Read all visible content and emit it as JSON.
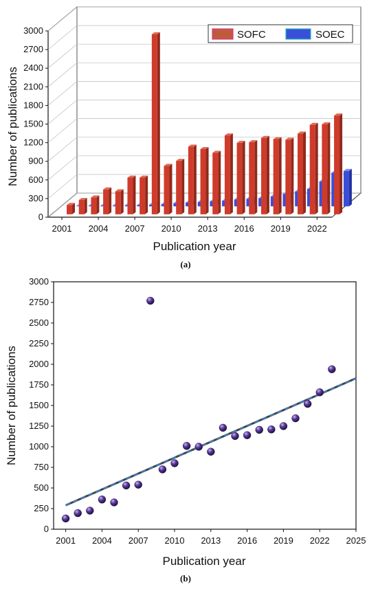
{
  "chart_data": [
    {
      "type": "bar",
      "panel_label": "(a)",
      "xlabel": "Publication year",
      "ylabel": "Number of publications",
      "ylim": [
        0,
        3000
      ],
      "yticks": [
        0,
        300,
        600,
        900,
        1200,
        1500,
        1800,
        2100,
        2400,
        2700,
        3000
      ],
      "xticks": [
        "2001",
        "2004",
        "2007",
        "2010",
        "2013",
        "2016",
        "2019",
        "2022"
      ],
      "categories": [
        2001,
        2002,
        2003,
        2004,
        2005,
        2006,
        2007,
        2008,
        2009,
        2010,
        2011,
        2012,
        2013,
        2014,
        2015,
        2016,
        2017,
        2018,
        2019,
        2020,
        2021,
        2022,
        2023
      ],
      "series": [
        {
          "name": "SOFC",
          "color": "#c0392b",
          "values": [
            150,
            230,
            270,
            400,
            370,
            590,
            590,
            2900,
            780,
            860,
            1090,
            1050,
            990,
            1270,
            1150,
            1160,
            1230,
            1210,
            1200,
            1300,
            1440,
            1450,
            1590
          ]
        },
        {
          "name": "SOEC",
          "color": "#3a4fd8",
          "values": [
            5,
            8,
            10,
            12,
            15,
            20,
            25,
            35,
            50,
            60,
            70,
            80,
            90,
            110,
            120,
            130,
            160,
            200,
            240,
            280,
            400,
            540,
            570
          ]
        }
      ],
      "legend": "top-right",
      "grid": true,
      "projection": "3d"
    },
    {
      "type": "scatter",
      "panel_label": "(b)",
      "xlabel": "Publication year",
      "ylabel": "Number of publications",
      "ylim": [
        0,
        3000
      ],
      "xlim": [
        2000,
        2025
      ],
      "yticks": [
        0,
        250,
        500,
        750,
        1000,
        1250,
        1500,
        1750,
        2000,
        2250,
        2500,
        2750,
        3000
      ],
      "xticks": [
        2001,
        2004,
        2007,
        2010,
        2013,
        2016,
        2019,
        2022,
        2025
      ],
      "x": [
        2001,
        2002,
        2003,
        2004,
        2005,
        2006,
        2007,
        2008,
        2009,
        2010,
        2011,
        2012,
        2013,
        2014,
        2015,
        2016,
        2017,
        2018,
        2019,
        2020,
        2021,
        2022,
        2023
      ],
      "y": [
        130,
        195,
        225,
        360,
        325,
        530,
        540,
        2770,
        725,
        800,
        1010,
        1000,
        940,
        1230,
        1130,
        1140,
        1205,
        1210,
        1250,
        1345,
        1520,
        1660,
        1940
      ],
      "marker_color": "#4b2d83",
      "trendline": {
        "x": [
          2001,
          2025
        ],
        "y": [
          290,
          1830
        ],
        "style": "dashed"
      },
      "grid": false
    }
  ]
}
